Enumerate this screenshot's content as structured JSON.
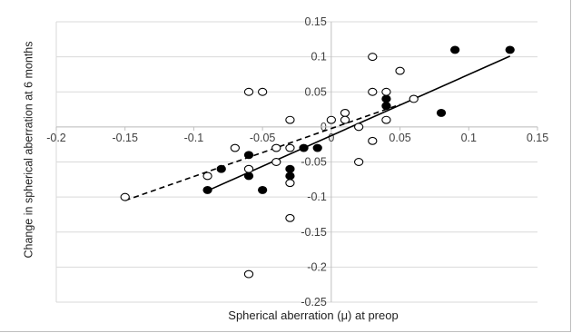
{
  "chart_data": {
    "type": "scatter",
    "title": "",
    "xlabel": "Spherical aberration (μ)  at preop",
    "ylabel": "Change in spherical aberration at 6 months",
    "xlim": [
      -0.2,
      0.15
    ],
    "ylim": [
      -0.25,
      0.15
    ],
    "x_ticks": [
      "-0.2",
      "-0.15",
      "-0.1",
      "-0.05",
      "0",
      "0.05",
      "0.1",
      "0.15"
    ],
    "y_ticks": [
      "0.15",
      "0.1",
      "0.05",
      "0",
      "-0.05",
      "-0.1",
      "-0.15",
      "-0.2",
      "-0.25"
    ],
    "grid": "horizontal",
    "legend": "none",
    "series": [
      {
        "marker": "filled-circle",
        "color": "#000000",
        "trendline": "solid",
        "trendline_range": [
          [
            -0.09,
            -0.091
          ],
          [
            0.13,
            0.101
          ]
        ],
        "points": [
          [
            -0.09,
            -0.09
          ],
          [
            -0.08,
            -0.06
          ],
          [
            -0.06,
            -0.04
          ],
          [
            -0.06,
            -0.07
          ],
          [
            -0.05,
            -0.09
          ],
          [
            -0.03,
            -0.07
          ],
          [
            -0.03,
            -0.06
          ],
          [
            -0.02,
            -0.03
          ],
          [
            -0.01,
            -0.03
          ],
          [
            0.04,
            0.04
          ],
          [
            0.04,
            0.03
          ],
          [
            0.08,
            0.02
          ],
          [
            0.09,
            0.11
          ],
          [
            0.13,
            0.11
          ]
        ]
      },
      {
        "marker": "open-circle",
        "color": "#000000",
        "trendline": "dashed",
        "trendline_range": [
          [
            -0.15,
            -0.105
          ],
          [
            0.05,
            0.032
          ]
        ],
        "points": [
          [
            -0.15,
            -0.1
          ],
          [
            -0.09,
            -0.07
          ],
          [
            -0.07,
            -0.03
          ],
          [
            -0.06,
            0.05
          ],
          [
            -0.06,
            -0.06
          ],
          [
            -0.06,
            -0.21
          ],
          [
            -0.05,
            0.05
          ],
          [
            -0.04,
            -0.03
          ],
          [
            -0.04,
            -0.05
          ],
          [
            -0.03,
            0.01
          ],
          [
            -0.03,
            -0.03
          ],
          [
            -0.03,
            -0.08
          ],
          [
            -0.03,
            -0.13
          ],
          [
            0.0,
            0.01
          ],
          [
            0.01,
            0.02
          ],
          [
            0.01,
            0.01
          ],
          [
            0.02,
            0.0
          ],
          [
            0.02,
            -0.05
          ],
          [
            0.03,
            0.1
          ],
          [
            0.03,
            0.05
          ],
          [
            0.03,
            -0.02
          ],
          [
            0.04,
            0.05
          ],
          [
            0.04,
            0.01
          ],
          [
            0.05,
            0.08
          ],
          [
            0.06,
            0.04
          ]
        ]
      }
    ]
  }
}
